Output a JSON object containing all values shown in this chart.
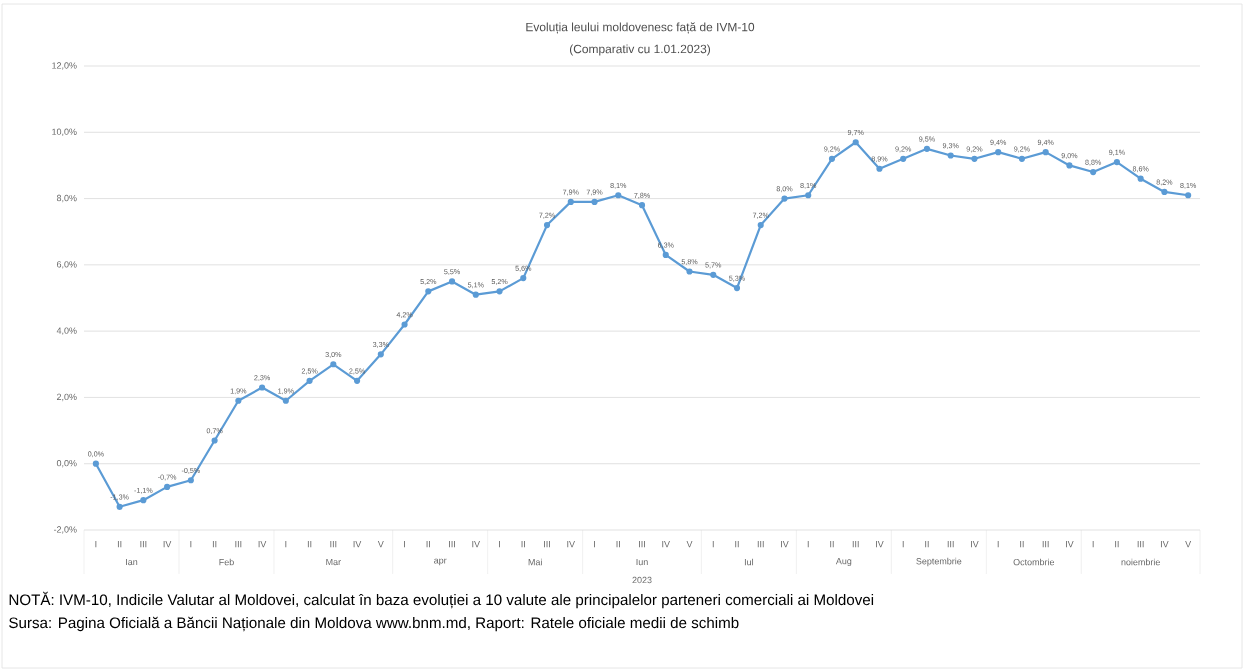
{
  "chart_data": {
    "type": "line",
    "title": "Evoluția leului moldovenesc față de IVM-10",
    "subtitle": "(Comparativ cu 1.01.2023)",
    "categories": [
      "I",
      "II",
      "III",
      "IV",
      "I",
      "II",
      "III",
      "IV",
      "I",
      "II",
      "III",
      "IV",
      "V",
      "I",
      "II",
      "III",
      "IV",
      "I",
      "II",
      "III",
      "IV",
      "I",
      "II",
      "III",
      "IV",
      "V",
      "I",
      "II",
      "III",
      "IV",
      "I",
      "II",
      "III",
      "IV",
      "I",
      "II",
      "III",
      "IV",
      "I",
      "II",
      "III",
      "IV",
      "I",
      "II",
      "III",
      "IV",
      "V"
    ],
    "series": [
      {
        "color": "#5b9bd5",
        "values": [
          0.0,
          -1.3,
          -1.1,
          -0.7,
          -0.5,
          0.7,
          1.9,
          2.3,
          1.9,
          2.5,
          3.0,
          2.5,
          3.3,
          4.2,
          5.2,
          5.5,
          5.1,
          5.2,
          5.6,
          7.2,
          7.9,
          7.9,
          8.1,
          7.8,
          6.3,
          5.8,
          5.7,
          5.3,
          7.2,
          8.0,
          8.1,
          9.2,
          9.7,
          8.9,
          9.2,
          9.5,
          9.3,
          9.2,
          9.4,
          9.2,
          9.4,
          9.0,
          8.8,
          9.1,
          8.6,
          8.2,
          8.1
        ],
        "value_labels": [
          "0,0%",
          "-1,3%",
          "-1,1%",
          "-0,7%",
          "-0,5%",
          "0,7%",
          "1,9%",
          "2,3%",
          "1,9%",
          "2,5%",
          "3,0%",
          "2,5%",
          "3,3%",
          "4,2%",
          "5,2%",
          "5,5%",
          "5,1%",
          "5,2%",
          "5,6%",
          "7,2%",
          "7,9%",
          "7,9%",
          "8,1%",
          "7,8%",
          "6,3%",
          "5,8%",
          "5,7%",
          "5,3%",
          "7,2%",
          "8,0%",
          "8,1%",
          "9,2%",
          "9,7%",
          "8,9%",
          "9,2%",
          "9,5%",
          "9,3%",
          "9,2%",
          "9,4%",
          "9,2%",
          "9,4%",
          "9,0%",
          "8,8%",
          "9,1%",
          "8,6%",
          "8,2%",
          "8,1%"
        ]
      }
    ],
    "ylim": [
      -2,
      12
    ],
    "yticks": [
      {
        "value": -2,
        "label": "-2,0%"
      },
      {
        "value": 0,
        "label": "0,0%"
      },
      {
        "value": 2,
        "label": "2,0%"
      },
      {
        "value": 4,
        "label": "4,0%"
      },
      {
        "value": 6,
        "label": "6,0%"
      },
      {
        "value": 8,
        "label": "8,0%"
      },
      {
        "value": 10,
        "label": "10,0%"
      },
      {
        "value": 12,
        "label": "12,0%"
      }
    ],
    "grid": "y",
    "marker": "circle",
    "line_style": "solid",
    "annotations": [
      "Ian",
      "Feb",
      "Mar",
      "apr",
      "Mai",
      "Iun",
      "Iul",
      "Aug",
      "Septembrie",
      "Octombrie",
      "noiembrie",
      "2023",
      "NOTĂ: IVM-10, Indicile Valutar al Moldovei, calculat în baza evoluției a 10 valute ale principalelor parteneri comerciali ai Moldovei",
      "Sursa: Pagina Oficială a Băncii Naționale din Moldova www.bnm.md, Raport: Ratele oficiale medii de schimb"
    ]
  }
}
